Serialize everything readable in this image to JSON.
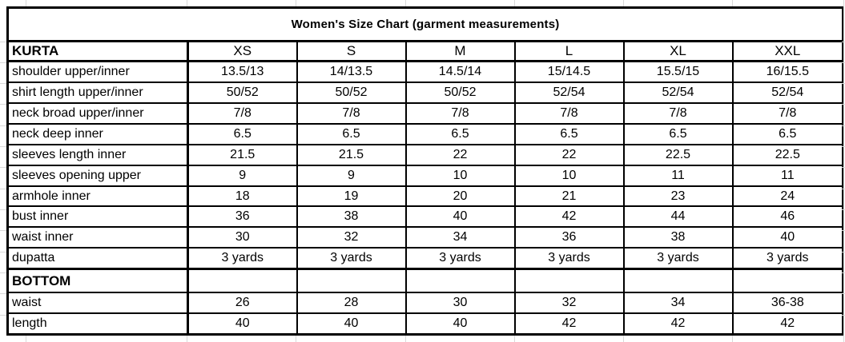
{
  "title": "Women's Size Chart (garment measurements)",
  "table": {
    "header": {
      "label": "KURTA",
      "sizes": [
        "XS",
        "S",
        "M",
        "L",
        "XL",
        "XXL"
      ]
    },
    "rows": [
      {
        "label": "shoulder upper/inner",
        "values": [
          "13.5/13",
          "14/13.5",
          "14.5/14",
          "15/14.5",
          "15.5/15",
          "16/15.5"
        ]
      },
      {
        "label": "shirt length upper/inner",
        "values": [
          "50/52",
          "50/52",
          "50/52",
          "52/54",
          "52/54",
          "52/54"
        ]
      },
      {
        "label": "neck broad upper/inner",
        "values": [
          "7/8",
          "7/8",
          "7/8",
          "7/8",
          "7/8",
          "7/8"
        ]
      },
      {
        "label": "neck deep inner",
        "values": [
          "6.5",
          "6.5",
          "6.5",
          "6.5",
          "6.5",
          "6.5"
        ]
      },
      {
        "label": "sleeves length inner",
        "values": [
          "21.5",
          "21.5",
          "22",
          "22",
          "22.5",
          "22.5"
        ]
      },
      {
        "label": "sleeves opening upper",
        "values": [
          "9",
          "9",
          "10",
          "10",
          "11",
          "11"
        ]
      },
      {
        "label": "armhole inner",
        "values": [
          "18",
          "19",
          "20",
          "21",
          "23",
          "24"
        ],
        "selected_col": 5
      },
      {
        "label": "bust inner",
        "values": [
          "36",
          "38",
          "40",
          "42",
          "44",
          "46"
        ]
      },
      {
        "label": "waist inner",
        "values": [
          "30",
          "32",
          "34",
          "36",
          "38",
          "40"
        ]
      },
      {
        "label": "dupatta",
        "values": [
          "3 yards",
          "3 yards",
          "3 yards",
          "3 yards",
          "3 yards",
          "3 yards"
        ]
      },
      {
        "label": "BOTTOM",
        "values": [
          "",
          "",
          "",
          "",
          "",
          ""
        ],
        "section": true,
        "thick_top": true
      },
      {
        "label": "waist",
        "values": [
          "26",
          "28",
          "30",
          "32",
          "34",
          "36-38"
        ]
      },
      {
        "label": "length",
        "values": [
          "40",
          "40",
          "40",
          "42",
          "42",
          "42"
        ]
      }
    ],
    "selection": {
      "row_label": "armhole inner",
      "column": "XXL",
      "value": "24"
    }
  },
  "colors": {
    "selection_green": "#217346",
    "table_border": "#000000",
    "sheet_gridline": "#d9d9d9",
    "background": "#ffffff"
  }
}
